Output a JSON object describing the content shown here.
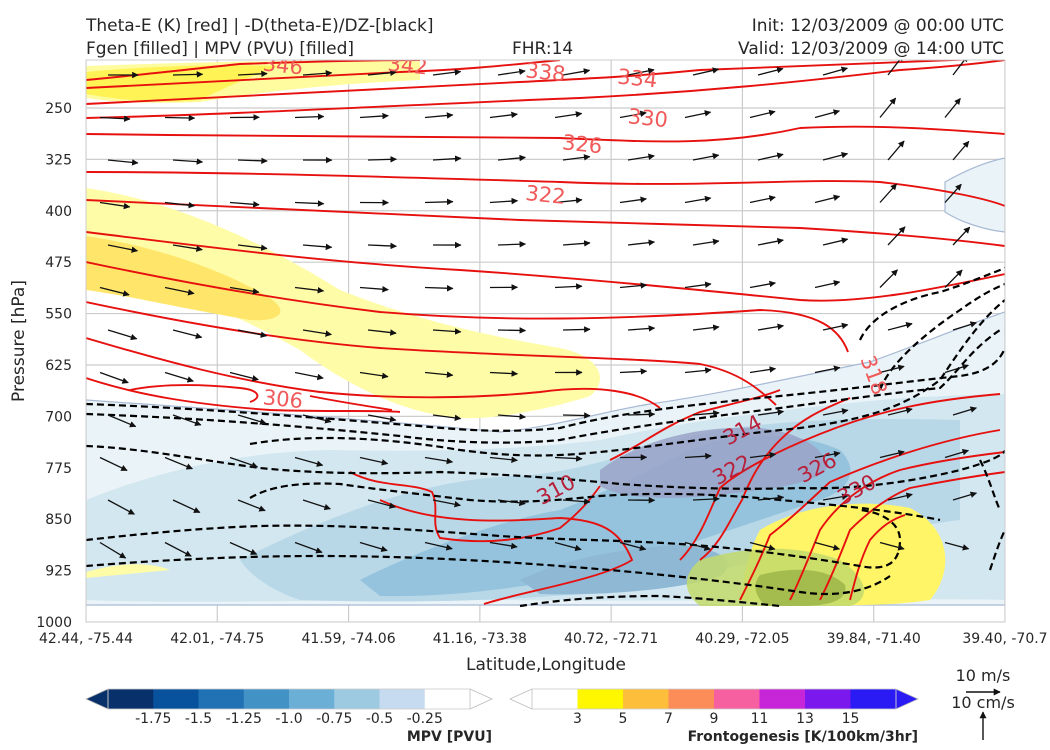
{
  "header": {
    "title_line1": "Theta-E (K) [red] | -D(theta-E)/DZ-[black]",
    "title_line2": "Fgen [filled] | MPV (PVU) [filled]",
    "fhr": "FHR:14",
    "init": "Init: 12/03/2009 @ 00:00 UTC",
    "valid": "Valid: 12/03/2009 @ 14:00 UTC"
  },
  "chart_data": {
    "type": "cross-section",
    "xlabel": "Latitude,Longitude",
    "ylabel": "Pressure [hPa]",
    "x_ticks": [
      "42.44, -75.44",
      "42.01, -74.75",
      "41.59, -74.06",
      "41.16, -73.38",
      "40.72, -72.71",
      "40.29, -72.05",
      "39.84, -71.40",
      "39.40, -70.7"
    ],
    "y_ticks": [
      250,
      325,
      400,
      475,
      550,
      625,
      700,
      775,
      850,
      925,
      1000
    ],
    "ylim": [
      1000,
      180
    ],
    "grid": true,
    "theta_e_labels": [
      {
        "label": "346",
        "x": 1.5,
        "p": 188
      },
      {
        "label": "342",
        "x": 2.45,
        "p": 188
      },
      {
        "label": "338",
        "x": 3.5,
        "p": 198
      },
      {
        "label": "334",
        "x": 4.2,
        "p": 207
      },
      {
        "label": "330",
        "x": 4.28,
        "p": 265
      },
      {
        "label": "326",
        "x": 3.78,
        "p": 303
      },
      {
        "label": "322",
        "x": 3.5,
        "p": 377
      },
      {
        "label": "306",
        "x": 1.5,
        "p": 675
      },
      {
        "label": "318",
        "x": 6.0,
        "p": 640
      },
      {
        "label": "314",
        "x": 5.0,
        "p": 720
      },
      {
        "label": "310",
        "x": 3.58,
        "p": 807
      },
      {
        "label": "322",
        "x": 4.92,
        "p": 778
      },
      {
        "label": "326",
        "x": 5.57,
        "p": 775
      },
      {
        "label": "330",
        "x": 5.87,
        "p": 807
      }
    ],
    "mpv_colorbar": {
      "label": "MPV [PVU]",
      "ticks": [
        "-1.75",
        "-1.5",
        "-1.25",
        "-1.0",
        "-0.75",
        "-0.5",
        "-0.25"
      ],
      "colors": [
        "#08306b",
        "#08519c",
        "#2171b5",
        "#4292c6",
        "#6baed6",
        "#9ecae1",
        "#c6dbef",
        "#ffffff"
      ]
    },
    "fgen_colorbar": {
      "label": "Frontogenesis [K/100km/3hr]",
      "ticks": [
        "3",
        "5",
        "7",
        "9",
        "11",
        "13",
        "15"
      ],
      "colors": [
        "#ffffff",
        "#fff700",
        "#fdbf3b",
        "#fc8d59",
        "#f760a0",
        "#c725d8",
        "#7a18ee",
        "#2a1bf5"
      ]
    },
    "wind_key": {
      "horizontal": "10 m/s",
      "vertical": "10 cm/s"
    }
  }
}
